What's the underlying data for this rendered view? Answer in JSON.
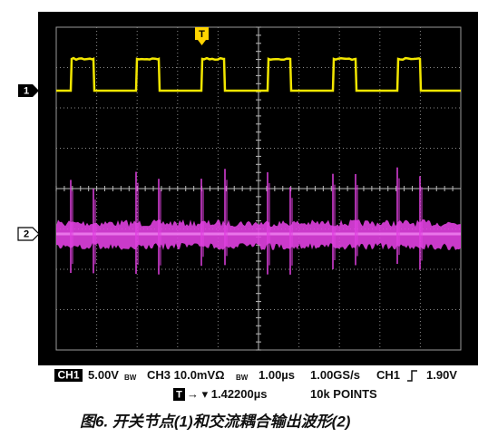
{
  "scope": {
    "markers": {
      "trigger": "T",
      "ch1": "1",
      "ch2": "2"
    },
    "status_line_1": {
      "ch1_label": "CH1",
      "ch1_scale": "5.00V",
      "ch1_bw": "BW",
      "ch3": "CH3 10.0mVΩ",
      "ch3_bw": "BW",
      "timebase": "1.00µs",
      "sample_rate": "1.00GS/s",
      "trigger_source": "CH1",
      "trigger_level": "1.90V"
    },
    "status_line_2": {
      "trigger_label": "T",
      "trigger_position": "→ ▾ 1.42200µs",
      "record_length": "10k POINTS"
    }
  },
  "caption": "图6. 开关节点(1)和交流耦合输出波形(2)"
}
